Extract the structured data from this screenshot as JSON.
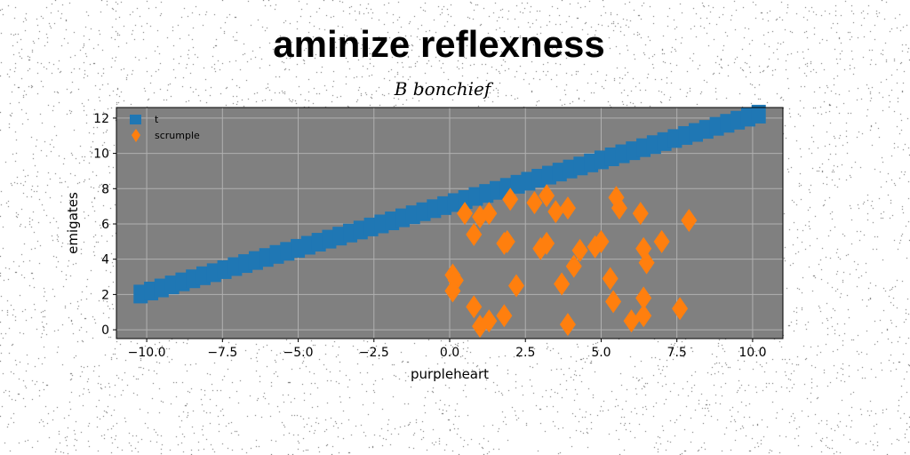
{
  "chart_data": {
    "type": "scatter",
    "title": "aminize reflexness",
    "subtitle": "B bonchief",
    "xlabel": "purpleheart",
    "ylabel": "emigates",
    "xlim": [
      -11,
      11
    ],
    "ylim": [
      -0.5,
      12.6
    ],
    "xticks": [
      -10,
      -7.5,
      -5,
      -2.5,
      0,
      2.5,
      5,
      7.5,
      10
    ],
    "xtick_labels": [
      "−10.0",
      "−7.5",
      "−5.0",
      "−2.5",
      "0.0",
      "2.5",
      "5.0",
      "7.5",
      "10.0"
    ],
    "yticks": [
      0,
      2,
      4,
      6,
      8,
      10,
      12
    ],
    "ytick_labels": [
      "0",
      "2",
      "4",
      "6",
      "8",
      "10",
      "12"
    ],
    "grid": true,
    "legend_placement": "top-left",
    "background": "#808080",
    "series": [
      {
        "name": "t",
        "marker": "square",
        "color": "#1f77b4",
        "line_start": [
          -10.2,
          2.0
        ],
        "line_end": [
          10.2,
          12.2
        ],
        "band_points": 60
      },
      {
        "name": "scrumple",
        "marker": "thin_diamond",
        "color": "#ff7f0e",
        "points": [
          [
            0.1,
            3.1
          ],
          [
            0.2,
            2.8
          ],
          [
            0.1,
            2.2
          ],
          [
            0.5,
            6.6
          ],
          [
            0.8,
            5.4
          ],
          [
            1.0,
            6.4
          ],
          [
            1.3,
            6.6
          ],
          [
            1.8,
            4.9
          ],
          [
            1.9,
            5.0
          ],
          [
            2.0,
            7.4
          ],
          [
            2.2,
            2.5
          ],
          [
            0.8,
            1.3
          ],
          [
            1.0,
            0.2
          ],
          [
            1.3,
            0.5
          ],
          [
            1.8,
            0.8
          ],
          [
            2.8,
            7.2
          ],
          [
            3.2,
            7.6
          ],
          [
            3.5,
            6.7
          ],
          [
            3.0,
            4.6
          ],
          [
            3.2,
            4.9
          ],
          [
            3.7,
            2.6
          ],
          [
            3.9,
            6.9
          ],
          [
            4.1,
            3.6
          ],
          [
            4.3,
            4.5
          ],
          [
            3.9,
            0.3
          ],
          [
            4.8,
            4.7
          ],
          [
            5.0,
            5.0
          ],
          [
            5.3,
            2.9
          ],
          [
            5.4,
            1.6
          ],
          [
            5.5,
            7.5
          ],
          [
            5.6,
            6.9
          ],
          [
            6.0,
            0.5
          ],
          [
            6.3,
            6.6
          ],
          [
            6.4,
            4.6
          ],
          [
            6.5,
            3.8
          ],
          [
            6.4,
            1.8
          ],
          [
            6.4,
            0.8
          ],
          [
            7.0,
            5.0
          ],
          [
            7.6,
            1.2
          ],
          [
            7.9,
            6.2
          ]
        ]
      }
    ]
  }
}
